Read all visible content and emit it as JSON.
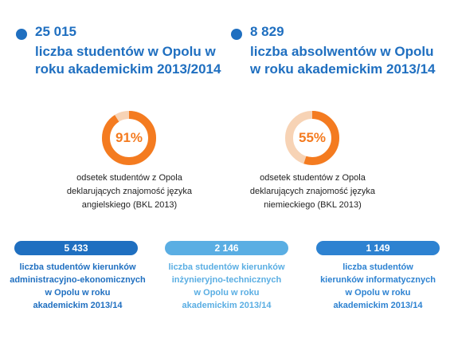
{
  "top_stats": [
    {
      "value": "25 015",
      "label_line1": "liczba studentów w Opolu w",
      "label_line2": "roku akademickim 2013/2014"
    },
    {
      "value": "8 829",
      "label_line1": "liczba absolwentów w Opolu",
      "label_line2": "w roku akademickim 2013/14"
    }
  ],
  "rings": [
    {
      "percent_label": "91%",
      "percent": 91,
      "caption_line1": "odsetek studentów z Opola",
      "caption_line2": "deklarujących znajomość języka",
      "caption_line3": "angielskiego (BKL 2013)"
    },
    {
      "percent_label": "55%",
      "percent": 55,
      "caption_line1": "odsetek studentów z Opola",
      "caption_line2": "deklarujących znajomość języka",
      "caption_line3": "niemieckiego (BKL 2013)"
    }
  ],
  "bottom_stats": [
    {
      "value": "5 433",
      "color": "#1f6fc0",
      "lines": [
        "liczba studentów kierunków",
        "administracyjno-ekonomicznych",
        "w Opolu w roku",
        "akademickim 2013/14"
      ]
    },
    {
      "value": "2 146",
      "color": "#5aaee3",
      "lines": [
        "liczba studentów kierunków",
        "inżynieryjno-technicznych",
        "w Opolu w roku",
        "akademickim 2013/14"
      ]
    },
    {
      "value": "1 149",
      "color": "#2d82d1",
      "lines": [
        "liczba studentów",
        "kierunków informatycznych",
        "w Opolu w roku",
        "akademickim 2013/14"
      ]
    }
  ],
  "colors": {
    "primary": "#1f6fc0",
    "accent": "#f47b20",
    "track": "#f7d3b5",
    "light_blue": "#5aaee3"
  }
}
